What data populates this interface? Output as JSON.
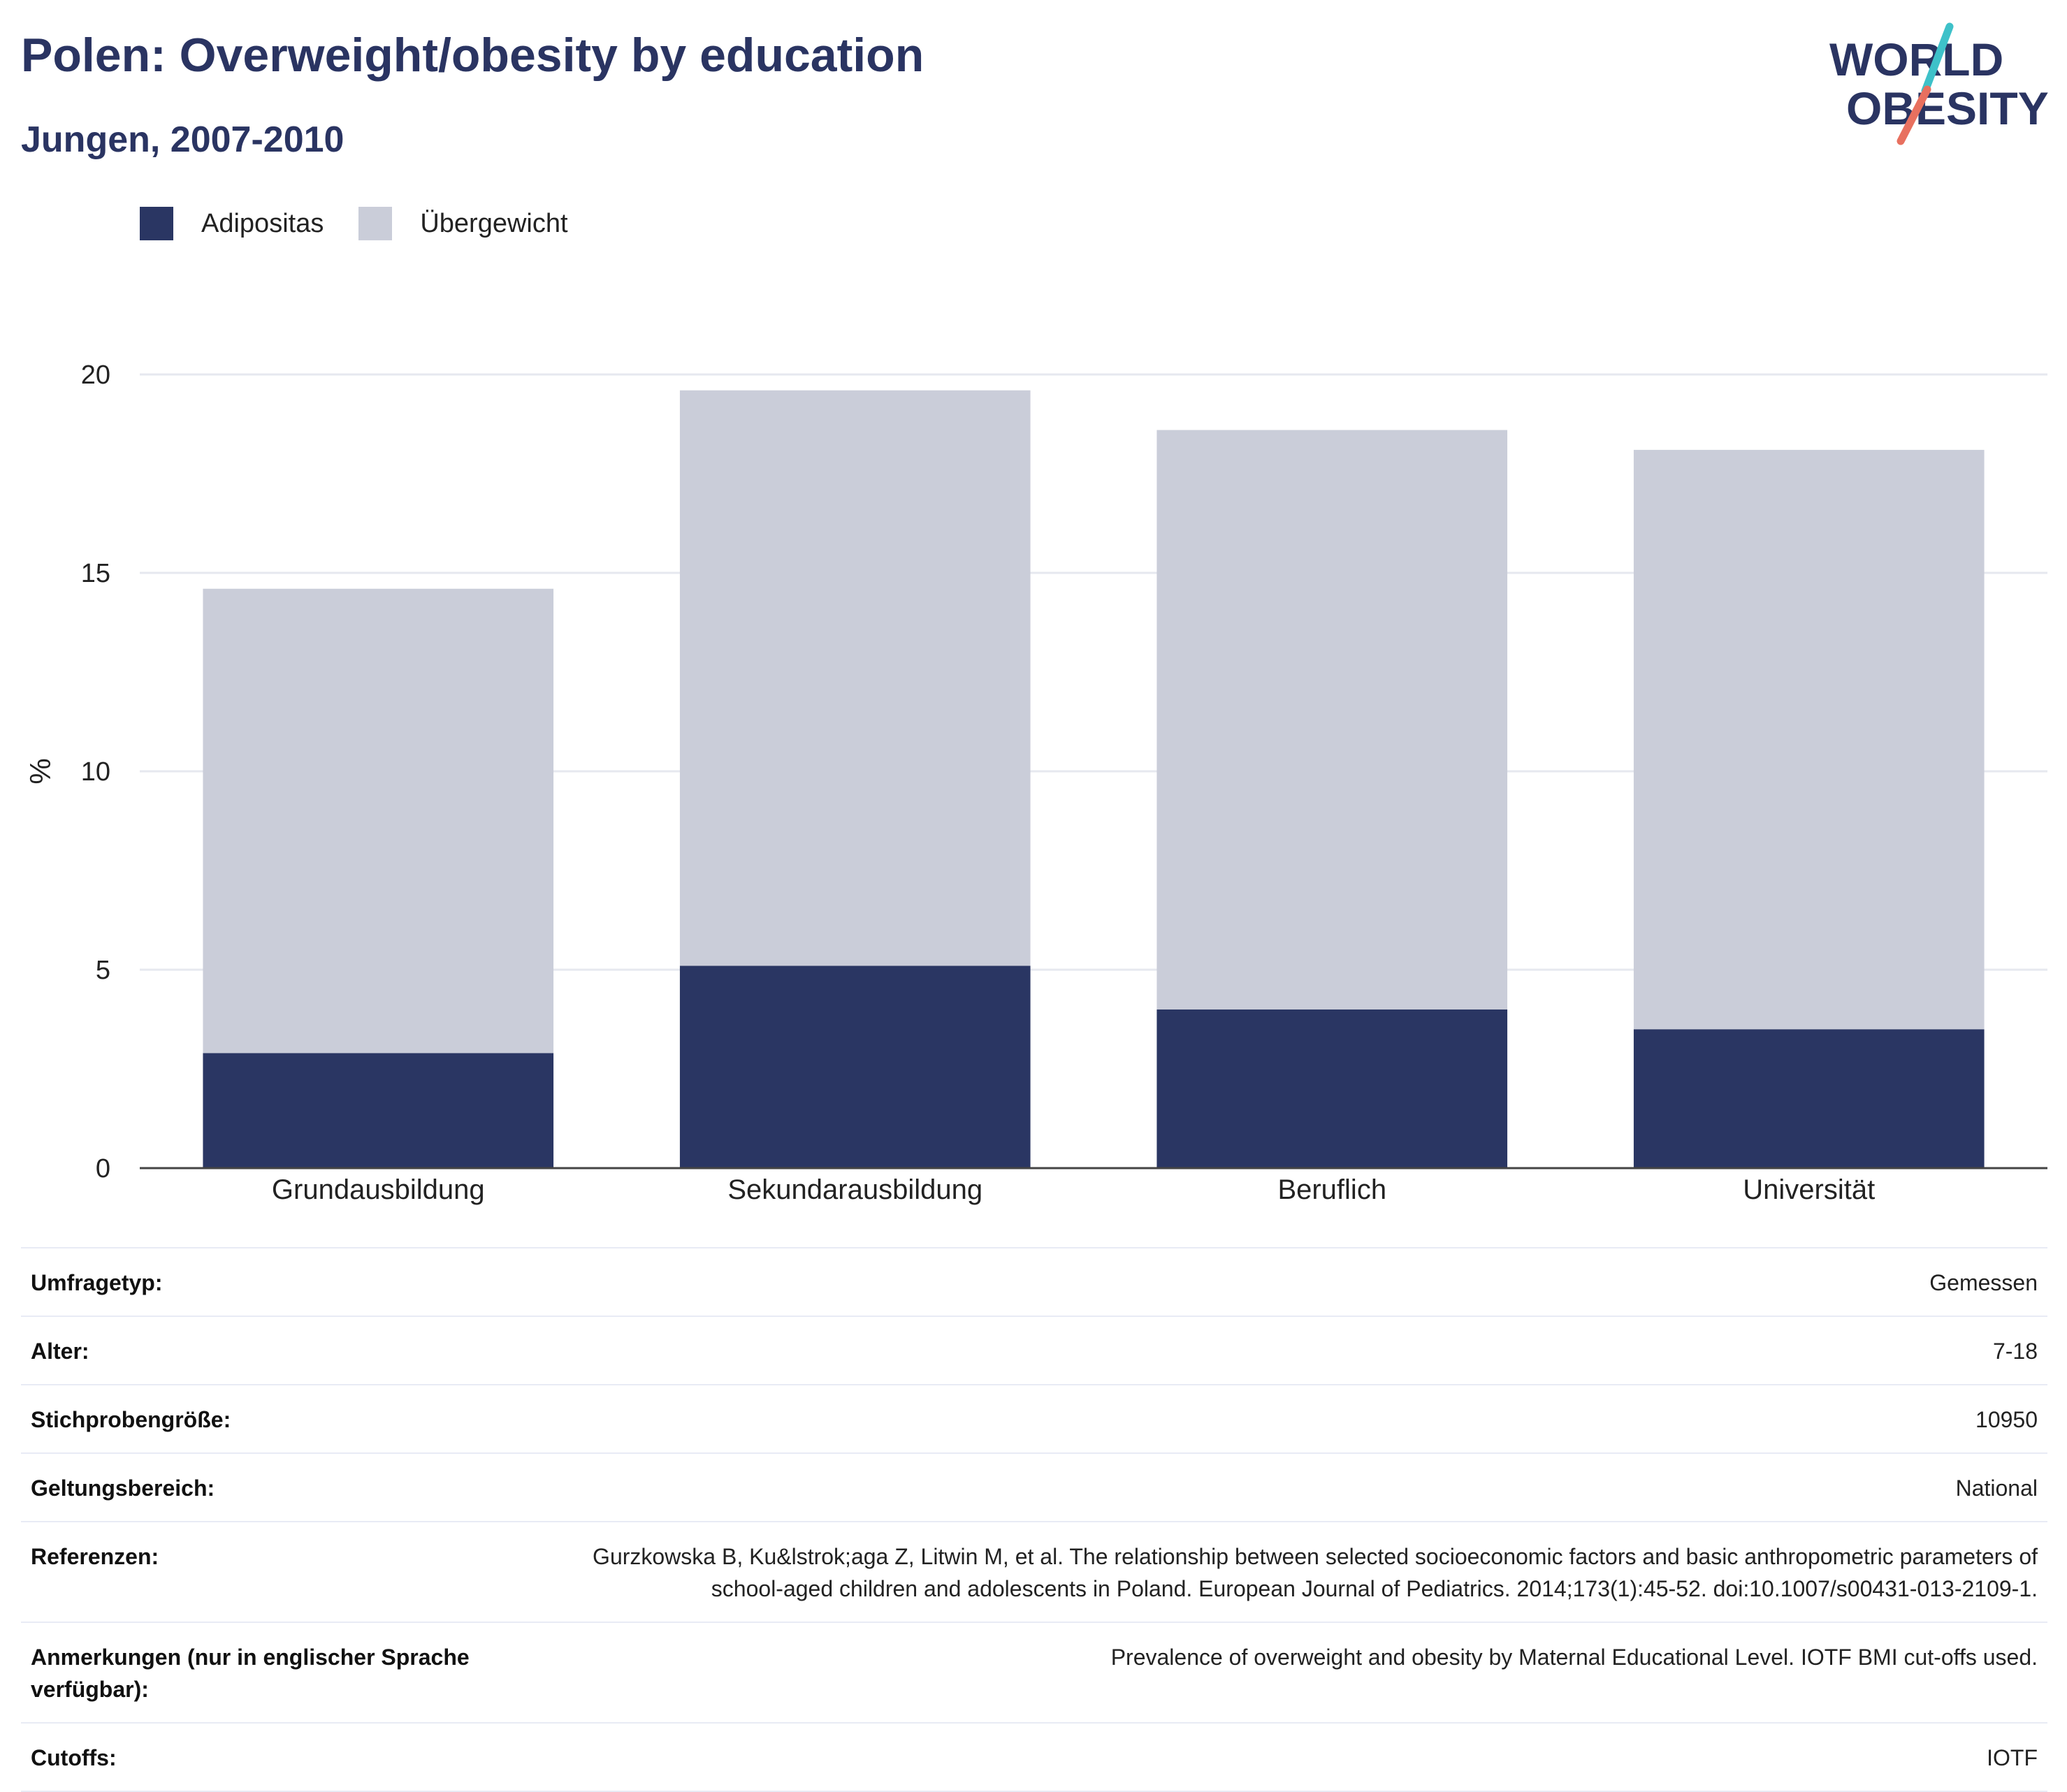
{
  "header": {
    "title": "Polen: Overweight/obesity by education",
    "subtitle": "Jungen, 2007-2010"
  },
  "logo": {
    "line1": "WORLD",
    "line2": "OBESITY"
  },
  "colors": {
    "adipositas": "#2a3663",
    "uebergewicht": "#cacdd9",
    "text_dark": "#2a3462",
    "logo_teal": "#3ec1c9",
    "logo_red": "#e8705f"
  },
  "chart_data": {
    "type": "bar",
    "stacked": true,
    "categories": [
      "Grundausbildung",
      "Sekundarausbildung",
      "Beruflich",
      "Universität"
    ],
    "series": [
      {
        "name": "Adipositas",
        "values": [
          2.9,
          5.1,
          4.0,
          3.5
        ]
      },
      {
        "name": "Übergewicht",
        "values": [
          11.7,
          14.5,
          14.6,
          14.6
        ]
      }
    ],
    "totals": [
      14.6,
      19.6,
      18.6,
      18.1
    ],
    "ylabel": "%",
    "ylim": [
      0,
      20
    ],
    "yticks": [
      0,
      5,
      10,
      15,
      20
    ],
    "grid": true,
    "legend_position": "top-left"
  },
  "info": [
    {
      "key": "Umfragetyp:",
      "value": "Gemessen"
    },
    {
      "key": "Alter:",
      "value": "7-18"
    },
    {
      "key": "Stichprobengröße:",
      "value": "10950"
    },
    {
      "key": "Geltungsbereich:",
      "value": "National"
    },
    {
      "key": "Referenzen:",
      "value": "Gurzkowska B, Ku&lstrok;aga Z, Litwin M, et al. The relationship between selected socioeconomic factors and basic anthropometric parameters of school-aged children and adolescents in Poland. European Journal of Pediatrics. 2014;173(1):45-52. doi:10.1007/s00431-013-2109-1."
    },
    {
      "key": "Anmerkungen (nur in englischer Sprache verfügbar):",
      "value": "Prevalence of overweight and obesity by Maternal Educational Level. IOTF BMI cut-offs used."
    },
    {
      "key": "Cutoffs:",
      "value": "IOTF"
    }
  ]
}
